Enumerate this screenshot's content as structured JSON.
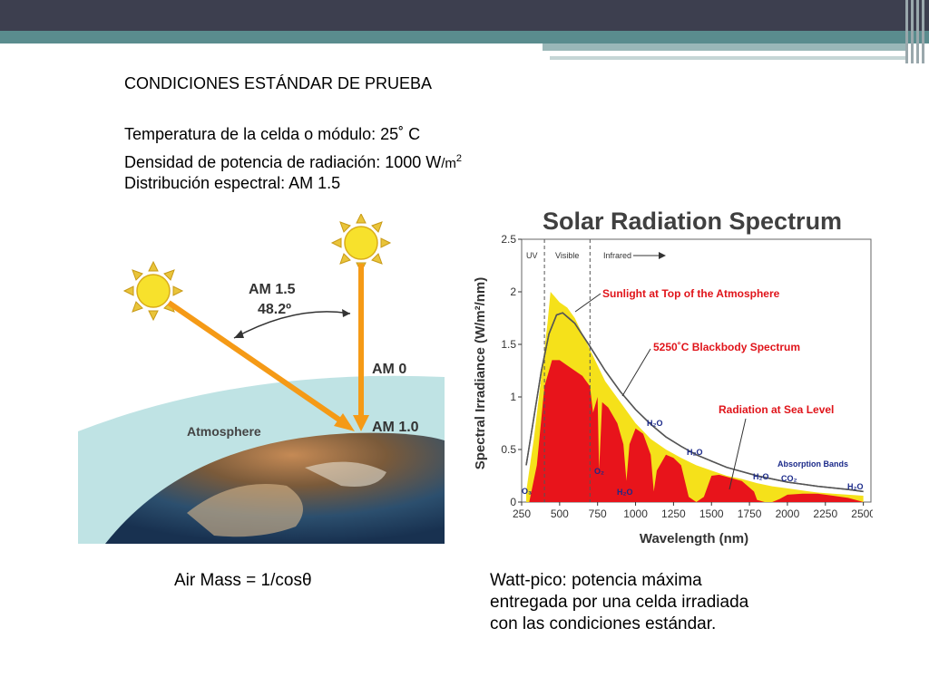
{
  "slide": {
    "heading": "CONDICIONES ESTÁNDAR DE PRUEBA",
    "line1": "Temperatura de la celda o módulo: 25˚ C",
    "line2_main": "Densidad de potencia de radiación: 1000 W",
    "line2_unit": "/m",
    "line2_exp": "2",
    "line3": "Distribución espectral: AM 1.5",
    "caption_left": "Air Mass = 1/cosθ",
    "caption_right_1": "Watt-pico: potencia máxima",
    "caption_right_2": "entregada por una celda irradiada",
    "caption_right_3": "con las condiciones estándar."
  },
  "airmass_figure": {
    "am15_label": "AM 1.5",
    "angle_label": "48.2º",
    "am0_label": "AM 0",
    "am10_label": "AM 1.0",
    "atmosphere_label": "Atmosphere"
  },
  "spectrum_figure": {
    "title": "Solar Radiation Spectrum",
    "uv_label": "UV",
    "visible_label": "Visible",
    "infrared_label": "Infrared",
    "annotation_top": "Sunlight at Top of the Atmosphere",
    "annotation_blackbody": "5250˚C Blackbody Spectrum",
    "annotation_sea": "Radiation at Sea Level",
    "absorption_label": "Absorption Bands",
    "band_labels": {
      "o3_left": "O₃",
      "o2": "O₂",
      "h2o_1": "H₂O",
      "h2o_2": "H₂O",
      "h2o_3": "H₂O",
      "h2o_4": "H₂O",
      "h2o_5": "H₂O",
      "co2": "CO₂"
    }
  },
  "chart_data": {
    "type": "area",
    "title": "Solar Radiation Spectrum",
    "xlabel": "Wavelength (nm)",
    "ylabel": "Spectral Irradiance (W/m²/nm)",
    "xlim": [
      250,
      2550
    ],
    "ylim": [
      0,
      2.5
    ],
    "x_ticks": [
      250,
      500,
      750,
      1000,
      1250,
      1500,
      1750,
      2000,
      2250,
      2500
    ],
    "y_ticks": [
      0,
      0.5,
      1,
      1.5,
      2,
      2.5
    ],
    "series": [
      {
        "name": "Sunlight at Top of the Atmosphere",
        "color": "#f5e11a",
        "x": [
          280,
          330,
          380,
          420,
          440,
          470,
          500,
          550,
          600,
          650,
          700,
          750,
          800,
          900,
          1000,
          1100,
          1200,
          1300,
          1400,
          1500,
          1600,
          1700,
          1800,
          1900,
          2000,
          2100,
          2200,
          2300,
          2400,
          2500
        ],
        "y": [
          0.1,
          0.6,
          1.2,
          1.7,
          2.0,
          1.95,
          1.9,
          1.85,
          1.75,
          1.6,
          1.45,
          1.3,
          1.15,
          0.95,
          0.75,
          0.6,
          0.5,
          0.42,
          0.35,
          0.3,
          0.25,
          0.22,
          0.18,
          0.15,
          0.13,
          0.11,
          0.09,
          0.08,
          0.07,
          0.06
        ]
      },
      {
        "name": "5250˚C Blackbody Spectrum",
        "color": "#555555",
        "x": [
          280,
          330,
          380,
          430,
          480,
          520,
          560,
          600,
          700,
          800,
          900,
          1000,
          1100,
          1200,
          1300,
          1400,
          1500,
          1600,
          1800,
          2000,
          2200,
          2400,
          2500
        ],
        "y": [
          0.35,
          0.8,
          1.25,
          1.6,
          1.78,
          1.8,
          1.75,
          1.7,
          1.48,
          1.25,
          1.05,
          0.88,
          0.74,
          0.62,
          0.53,
          0.45,
          0.39,
          0.33,
          0.25,
          0.19,
          0.15,
          0.12,
          0.1
        ]
      },
      {
        "name": "Radiation at Sea Level",
        "color": "#e8141b",
        "x": [
          300,
          350,
          400,
          430,
          450,
          500,
          550,
          600,
          650,
          700,
          720,
          750,
          760,
          780,
          820,
          880,
          920,
          940,
          960,
          1000,
          1050,
          1100,
          1120,
          1140,
          1200,
          1250,
          1300,
          1350,
          1400,
          1450,
          1500,
          1550,
          1600,
          1700,
          1780,
          1800,
          1850,
          1900,
          1950,
          2000,
          2100,
          2200,
          2300,
          2400,
          2450,
          2500
        ],
        "y": [
          0.0,
          0.35,
          1.1,
          1.25,
          1.35,
          1.35,
          1.3,
          1.25,
          1.2,
          1.1,
          0.85,
          1.0,
          0.3,
          0.95,
          0.9,
          0.75,
          0.55,
          0.2,
          0.55,
          0.7,
          0.65,
          0.45,
          0.1,
          0.3,
          0.45,
          0.42,
          0.35,
          0.05,
          0.0,
          0.05,
          0.25,
          0.26,
          0.24,
          0.2,
          0.1,
          0.02,
          0.0,
          0.0,
          0.03,
          0.07,
          0.08,
          0.08,
          0.06,
          0.04,
          0.02,
          0.0
        ]
      }
    ],
    "grid": false,
    "legend": "none"
  }
}
